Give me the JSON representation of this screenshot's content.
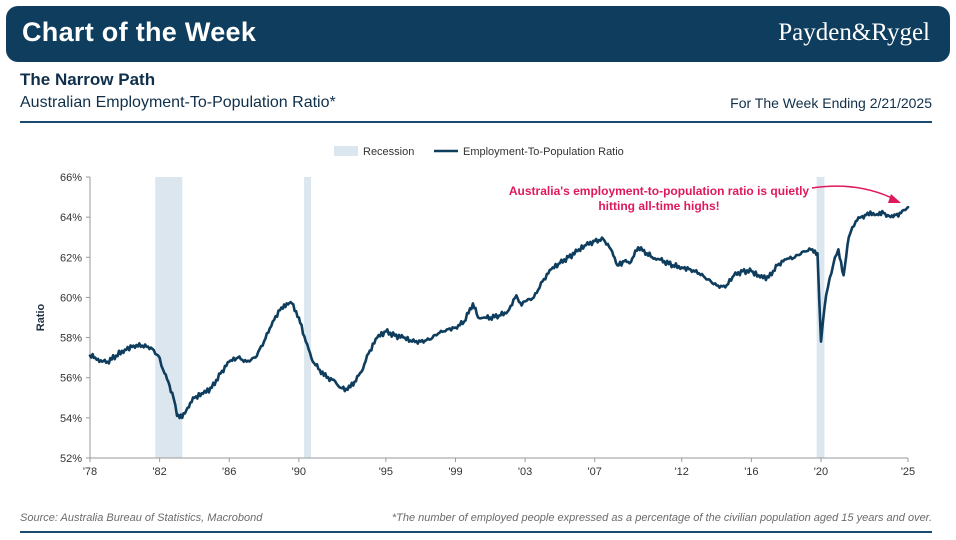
{
  "banner": {
    "title": "Chart of the Week",
    "brand": "Payden&Rygel"
  },
  "header": {
    "title": "The Narrow Path",
    "subtitle": "Australian Employment-To-Population Ratio*",
    "week": "For The Week Ending 2/21/2025"
  },
  "footer": {
    "source": "Source: Australia Bureau of Statistics, Macrobond",
    "footnote": "*The number of employed people expressed as a percentage of the civilian population aged 15 years and over."
  },
  "colors": {
    "banner": "#0f3d5e",
    "line": "#0f3d5e",
    "recession": "#dce6ee",
    "annotation": "#e0185c"
  },
  "chart_data": {
    "type": "line",
    "title": "Australian Employment-To-Population Ratio*",
    "xlabel": "",
    "ylabel": "Ratio",
    "ylim": [
      52,
      66
    ],
    "xlim": [
      1978,
      2025
    ],
    "yticks": [
      52,
      54,
      56,
      58,
      60,
      62,
      64,
      66
    ],
    "ytick_labels": [
      "52%",
      "54%",
      "56%",
      "58%",
      "60%",
      "62%",
      "64%",
      "66%"
    ],
    "xticks": [
      1978,
      1982,
      1986,
      1990,
      1995,
      1999,
      2003,
      2007,
      2012,
      2016,
      2020,
      2025
    ],
    "xtick_labels": [
      "'78",
      "'82",
      "'86",
      "'90",
      "'95",
      "'99",
      "'03",
      "'07",
      "'12",
      "'16",
      "'20",
      "'25"
    ],
    "legend": [
      "Recession",
      "Employment-To-Population Ratio"
    ],
    "legend_position": "top-center",
    "grid": false,
    "recessions": [
      [
        1981.75,
        1983.3
      ],
      [
        1990.3,
        1990.7
      ],
      [
        2019.75,
        2020.2
      ]
    ],
    "annotation": "Australia's employment-to-population ratio is quietly hitting all-time highs!",
    "series": [
      {
        "name": "Employment-To-Population Ratio",
        "x": [
          1978,
          1978.3,
          1978.7,
          1979,
          1979.5,
          1980,
          1980.5,
          1981,
          1981.5,
          1982,
          1982.2,
          1982.5,
          1982.8,
          1983,
          1983.3,
          1983.6,
          1984,
          1984.5,
          1985,
          1985.5,
          1986,
          1986.5,
          1987,
          1987.5,
          1988,
          1988.5,
          1989,
          1989.3,
          1989.6,
          1990,
          1990.4,
          1990.8,
          1991.2,
          1991.6,
          1992,
          1992.4,
          1992.8,
          1993.2,
          1993.6,
          1994,
          1994.5,
          1995,
          1995.5,
          1996,
          1996.5,
          1997,
          1997.5,
          1998,
          1998.5,
          1999,
          1999.5,
          2000,
          2000.3,
          2000.7,
          2001,
          2001.5,
          2002,
          2002.5,
          2002.8,
          2003,
          2003.5,
          2004,
          2004.5,
          2005,
          2005.5,
          2006,
          2006.5,
          2007,
          2007.5,
          2008,
          2008.3,
          2008.7,
          2009,
          2009.5,
          2010,
          2010.3,
          2010.7,
          2011,
          2011.5,
          2012,
          2012.5,
          2013,
          2013.5,
          2014,
          2014.5,
          2015,
          2015.5,
          2016,
          2016.5,
          2017,
          2017.5,
          2018,
          2018.5,
          2019,
          2019.5,
          2019.8,
          2020,
          2020.2,
          2020.4,
          2020.6,
          2020.8,
          2021,
          2021.3,
          2021.6,
          2021.8,
          2022,
          2022.3,
          2022.6,
          2023,
          2023.3,
          2023.6,
          2024,
          2024.3,
          2024.6,
          2025
        ],
        "values": [
          57.1,
          57.0,
          56.8,
          56.8,
          57.1,
          57.4,
          57.6,
          57.6,
          57.5,
          57.0,
          56.4,
          55.8,
          55.0,
          54.1,
          54.0,
          54.5,
          55.0,
          55.2,
          55.5,
          56.2,
          56.8,
          57.0,
          56.8,
          57.0,
          57.8,
          58.8,
          59.5,
          59.7,
          59.7,
          59.0,
          57.8,
          56.8,
          56.4,
          56.0,
          55.9,
          55.5,
          55.4,
          55.8,
          56.3,
          57.2,
          58.0,
          58.3,
          58.1,
          58.0,
          57.8,
          57.8,
          57.9,
          58.2,
          58.4,
          58.5,
          58.8,
          59.7,
          59.0,
          59.0,
          59.0,
          59.1,
          59.3,
          60.1,
          59.6,
          59.8,
          60.0,
          60.8,
          61.4,
          61.7,
          62.0,
          62.3,
          62.6,
          62.8,
          62.9,
          62.3,
          61.6,
          61.8,
          61.7,
          62.5,
          62.2,
          62.0,
          61.9,
          61.8,
          61.6,
          61.5,
          61.4,
          61.2,
          60.9,
          60.6,
          60.5,
          61.1,
          61.3,
          61.3,
          61.0,
          61.0,
          61.6,
          61.9,
          62.0,
          62.3,
          62.4,
          62.2,
          57.8,
          59.5,
          60.5,
          61.2,
          62.0,
          62.4,
          61.1,
          63.0,
          63.5,
          63.8,
          64.0,
          64.1,
          64.2,
          64.1,
          64.2,
          64.0,
          64.1,
          64.2,
          64.5
        ]
      }
    ]
  }
}
